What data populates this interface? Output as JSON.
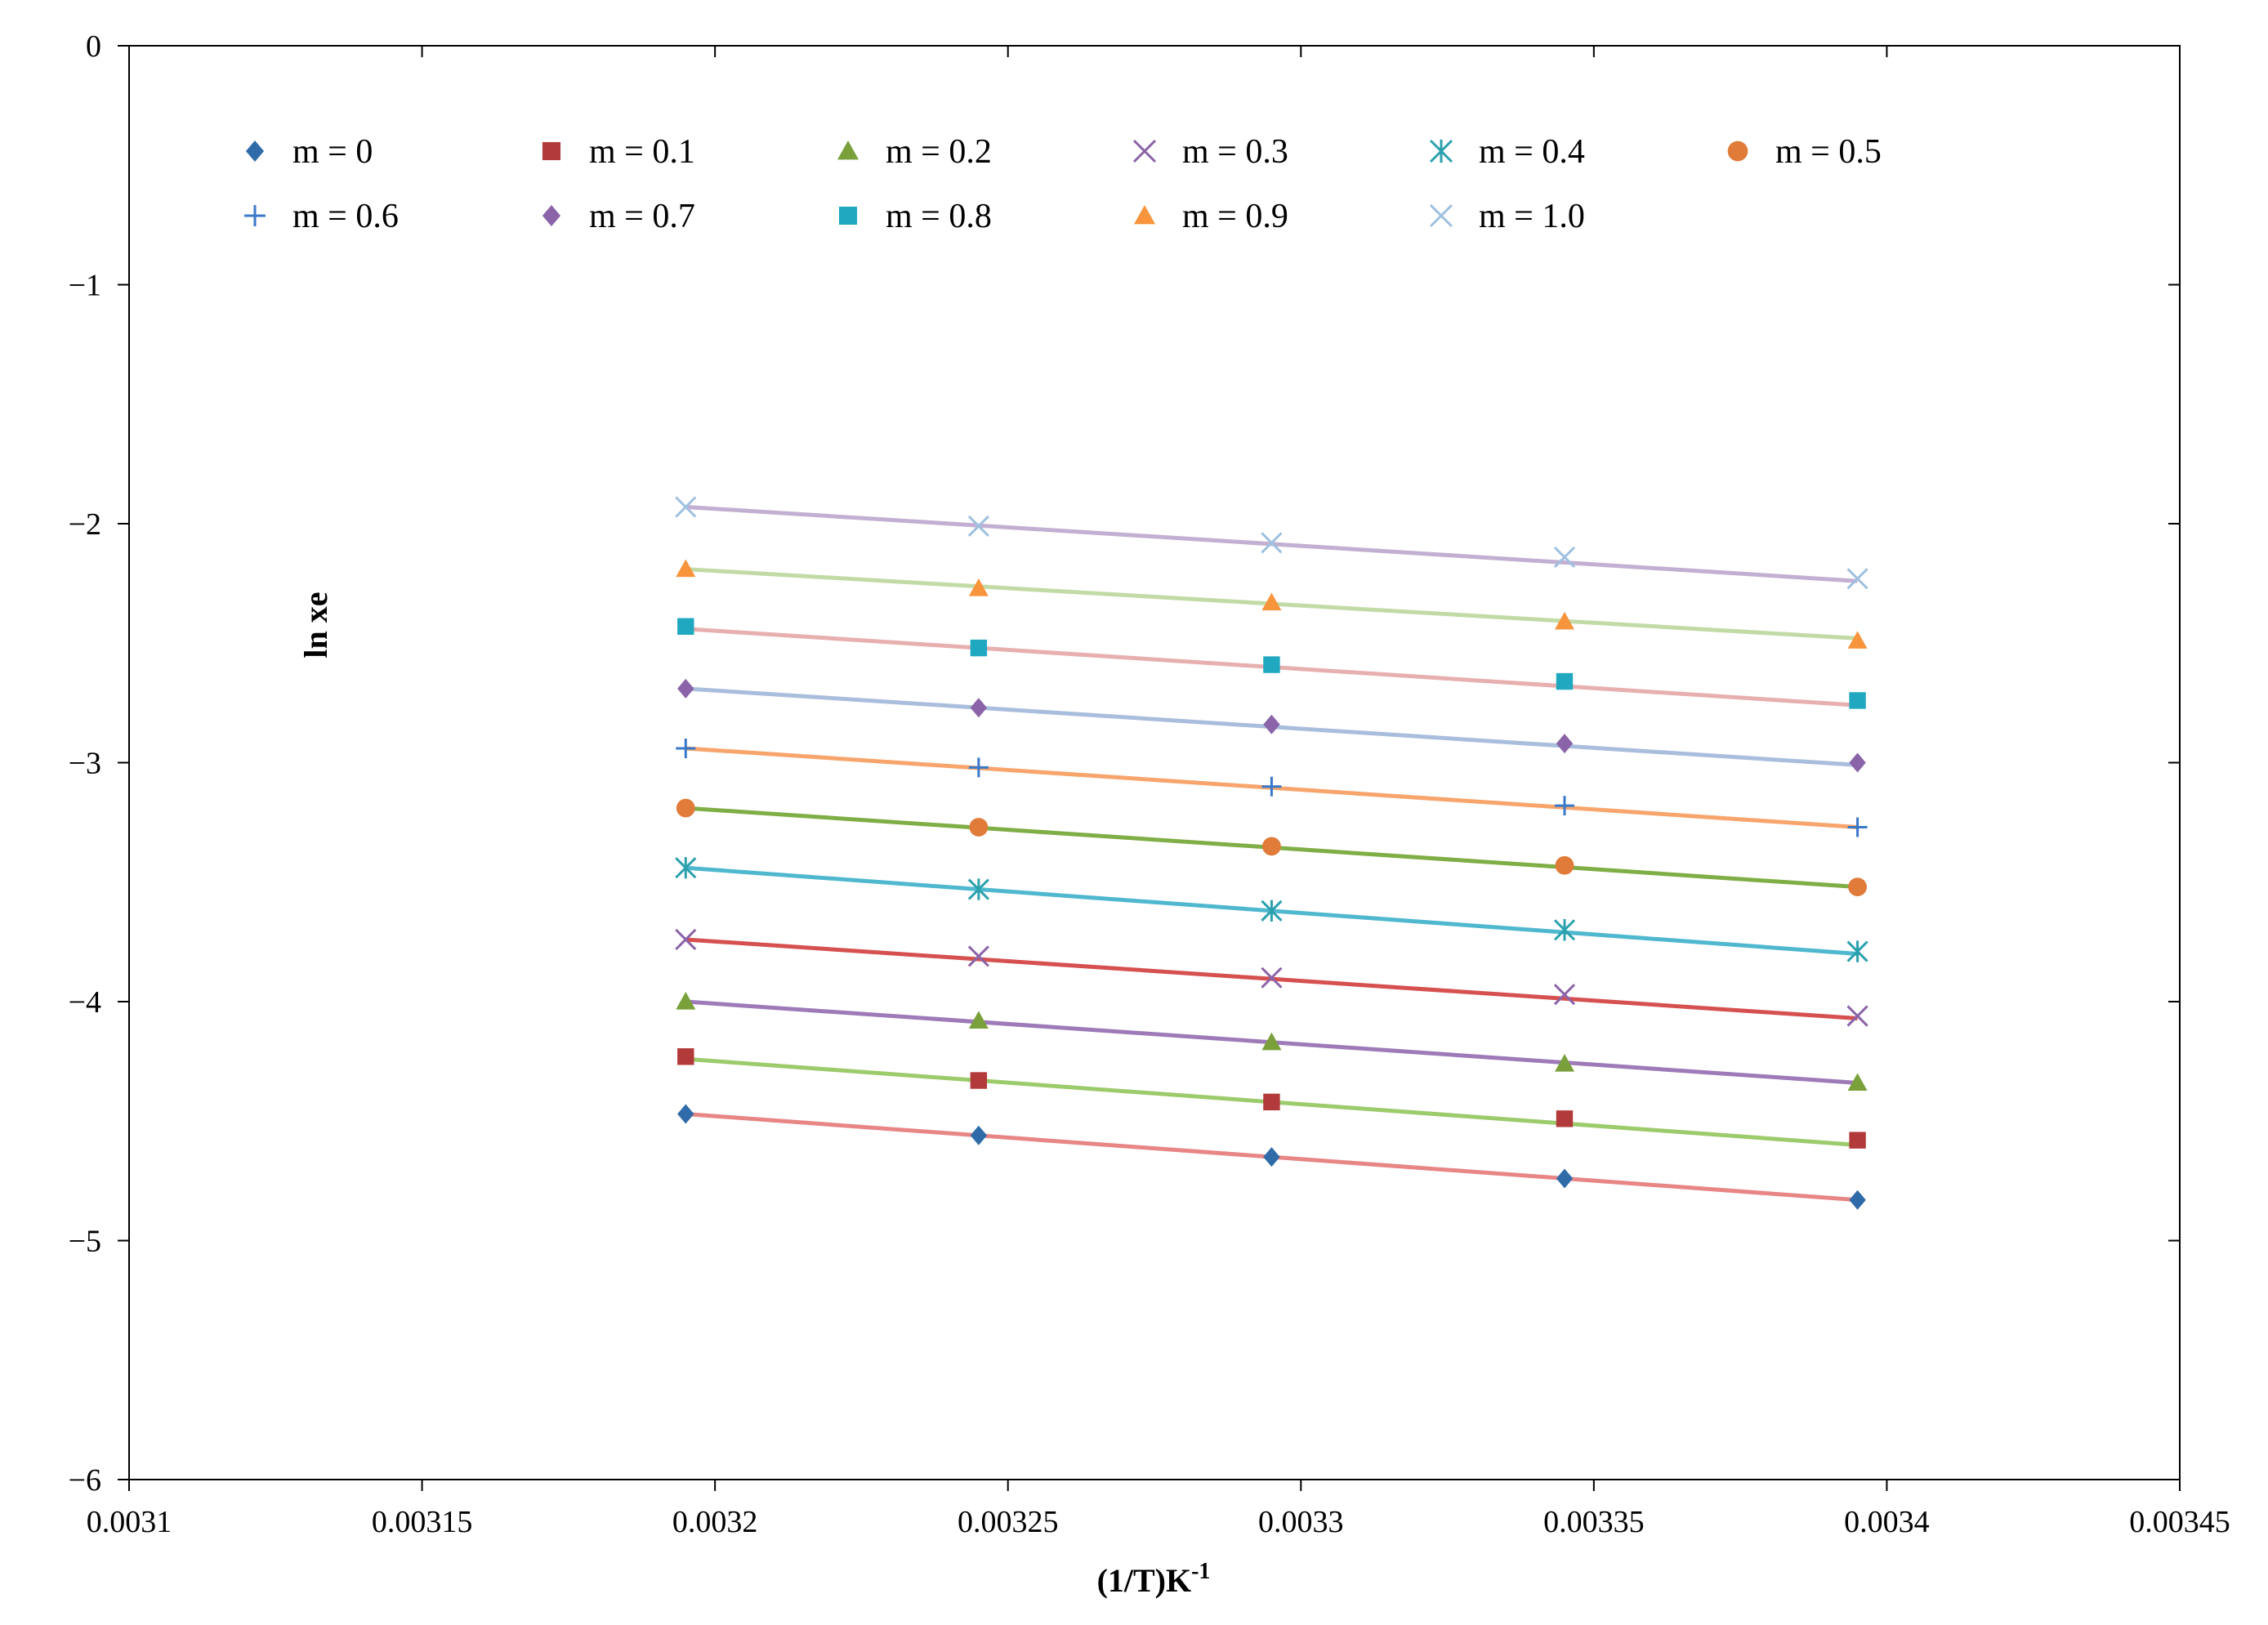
{
  "chart_data": {
    "type": "scatter",
    "title": "",
    "xlabel": "(1/T)K",
    "xlabel_sup": "-1",
    "ylabel": "ln xe",
    "xlim": [
      0.0031,
      0.00345
    ],
    "ylim": [
      -6,
      0
    ],
    "x_ticks": [
      "0.0031",
      "0.00315",
      "0.0032",
      "0.00325",
      "0.0033",
      "0.00335",
      "0.0034",
      "0.00345"
    ],
    "y_ticks": [
      "0",
      "−1",
      "−2",
      "−3",
      "−4",
      "−5",
      "−6"
    ],
    "grid": false,
    "legend_position": "top",
    "x": [
      0.003195,
      0.003245,
      0.003295,
      0.003345,
      0.003395
    ],
    "series": [
      {
        "name": "m = 0",
        "marker": "diamond",
        "color": "#2E6BA8",
        "line_color": "#E88585",
        "values": [
          -4.47,
          -4.56,
          -4.65,
          -4.74,
          -4.83
        ],
        "fit": [
          -4.47,
          -4.83
        ]
      },
      {
        "name": "m = 0.1",
        "marker": "square",
        "color": "#B23A3A",
        "line_color": "#9CCB6C",
        "values": [
          -4.23,
          -4.33,
          -4.42,
          -4.49,
          -4.58
        ],
        "fit": [
          -4.24,
          -4.6
        ]
      },
      {
        "name": "m = 0.2",
        "marker": "triangle",
        "color": "#79A03A",
        "line_color": "#9E7AB8",
        "values": [
          -4.0,
          -4.08,
          -4.17,
          -4.26,
          -4.34
        ],
        "fit": [
          -4.0,
          -4.34
        ]
      },
      {
        "name": "m = 0.3",
        "marker": "x",
        "color": "#8B63A8",
        "line_color": "#D65050",
        "values": [
          -3.74,
          -3.81,
          -3.9,
          -3.97,
          -4.06
        ],
        "fit": [
          -3.74,
          -4.07
        ]
      },
      {
        "name": "m = 0.4",
        "marker": "asterisk",
        "color": "#2CA1AE",
        "line_color": "#4FB8CF",
        "values": [
          -3.44,
          -3.53,
          -3.62,
          -3.7,
          -3.79
        ],
        "fit": [
          -3.44,
          -3.8
        ]
      },
      {
        "name": "m = 0.5",
        "marker": "circle",
        "color": "#E07B39",
        "line_color": "#7EAE45",
        "values": [
          -3.19,
          -3.27,
          -3.35,
          -3.43,
          -3.52
        ],
        "fit": [
          -3.19,
          -3.52
        ]
      },
      {
        "name": "m = 0.6",
        "marker": "plus",
        "color": "#3A78C8",
        "line_color": "#F7A56C",
        "values": [
          -2.94,
          -3.02,
          -3.1,
          -3.18,
          -3.27
        ],
        "fit": [
          -2.94,
          -3.27
        ]
      },
      {
        "name": "m = 0.7",
        "marker": "diamond",
        "color": "#8A63A8",
        "line_color": "#A9BEDD",
        "values": [
          -2.69,
          -2.77,
          -2.84,
          -2.92,
          -3.0
        ],
        "fit": [
          -2.69,
          -3.01
        ]
      },
      {
        "name": "m = 0.8",
        "marker": "square",
        "color": "#1FA8C0",
        "line_color": "#E8AFAF",
        "values": [
          -2.43,
          -2.52,
          -2.59,
          -2.66,
          -2.74
        ],
        "fit": [
          -2.44,
          -2.76
        ]
      },
      {
        "name": "m = 0.9",
        "marker": "triangle",
        "color": "#F7943C",
        "line_color": "#C2DBA6",
        "values": [
          -2.19,
          -2.27,
          -2.33,
          -2.41,
          -2.49
        ],
        "fit": [
          -2.19,
          -2.48
        ]
      },
      {
        "name": "m = 1.0",
        "marker": "x",
        "color": "#9FC0E0",
        "line_color": "#C2AFD1",
        "values": [
          -1.93,
          -2.01,
          -2.08,
          -2.14,
          -2.23
        ],
        "fit": [
          -1.93,
          -2.24
        ]
      }
    ]
  }
}
